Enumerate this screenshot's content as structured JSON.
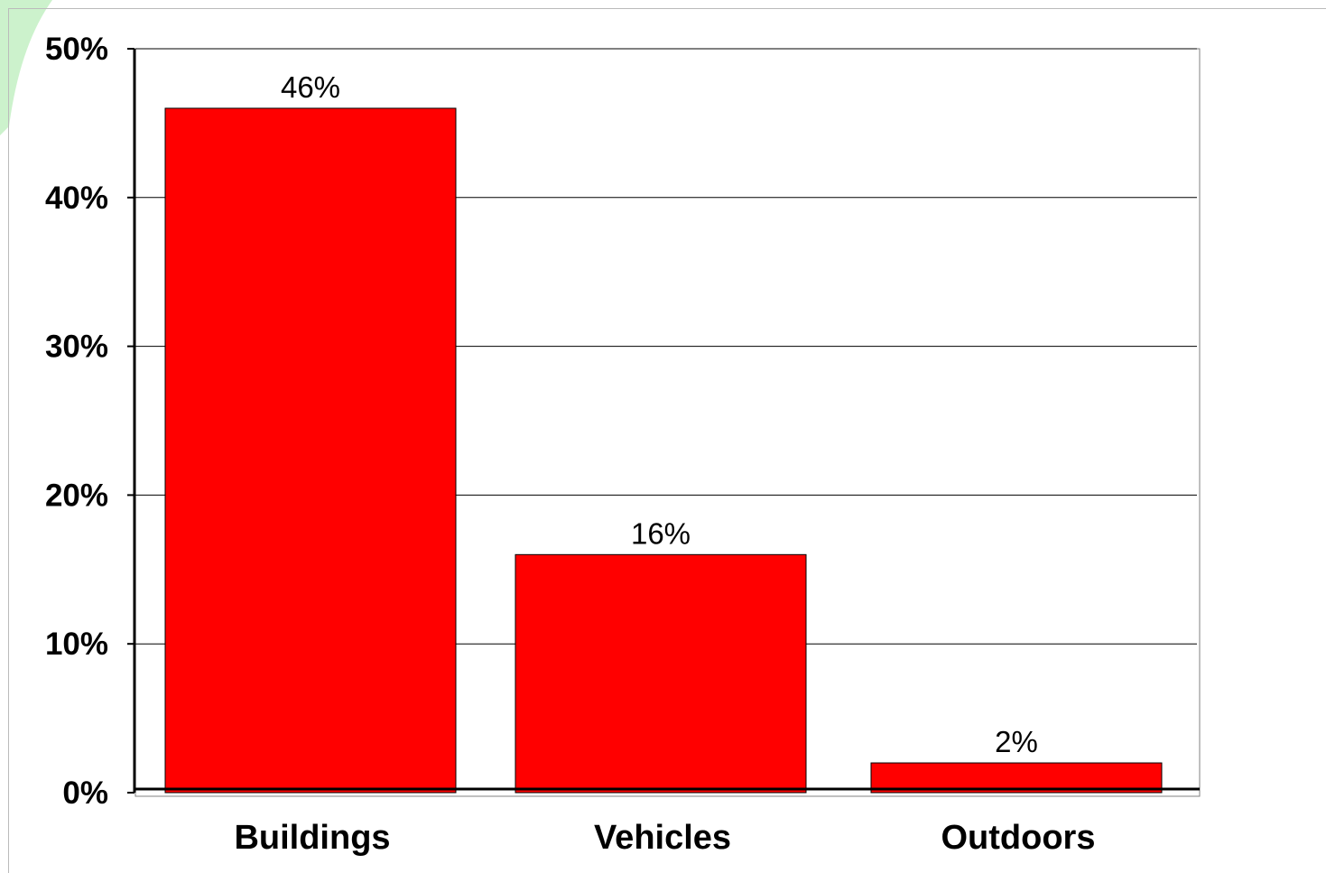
{
  "chart_data": {
    "type": "bar",
    "categories": [
      "Buildings",
      "Vehicles",
      "Outdoors"
    ],
    "values": [
      46,
      16,
      2
    ],
    "data_labels": [
      "46%",
      "16%",
      "2%"
    ],
    "ylim": [
      0,
      50
    ],
    "yticks": [
      0,
      10,
      20,
      30,
      40,
      50
    ],
    "ytick_labels": [
      "0%",
      "10%",
      "20%",
      "30%",
      "40%",
      "50%"
    ],
    "grid": true,
    "legend": "none",
    "bar_color": "#ff0000"
  }
}
